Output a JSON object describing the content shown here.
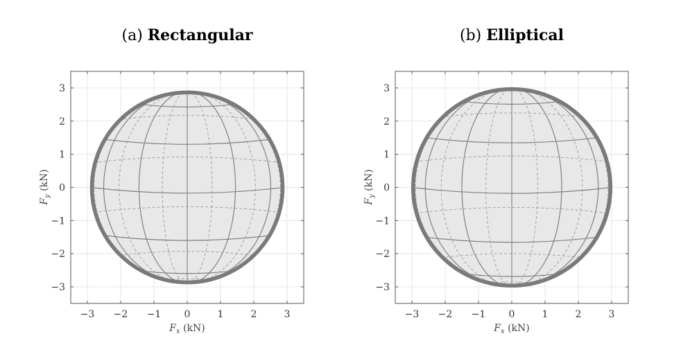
{
  "panels": [
    {
      "prefix": "(a)",
      "name": "Rectangular",
      "xlabel_var": "F",
      "xlabel_sub": "x",
      "xlabel_unit": " (kN)",
      "ylabel_var": "F",
      "ylabel_sub": "y",
      "ylabel_unit": " (kN)"
    },
    {
      "prefix": "(b)",
      "name": "Elliptical",
      "xlabel_var": "F",
      "xlabel_sub": "x",
      "xlabel_unit": " (kN)",
      "ylabel_var": "F",
      "ylabel_sub": "y",
      "ylabel_unit": " (kN)"
    }
  ],
  "chart_data": [
    {
      "type": "line",
      "title": "(a) Rectangular",
      "xlabel": "F_x (kN)",
      "ylabel": "F_y (kN)",
      "xlim": [
        -3.5,
        3.5
      ],
      "ylim": [
        -3.5,
        3.5
      ],
      "xticks": [
        -3,
        -2,
        -1,
        0,
        1,
        2,
        3
      ],
      "yticks": [
        -3,
        -2,
        -1,
        0,
        1,
        2,
        3
      ],
      "xtick_labels": [
        "−3",
        "−2",
        "−1",
        "0",
        "1",
        "2",
        "3"
      ],
      "ytick_labels": [
        "−3",
        "−2",
        "−1",
        "0",
        "1",
        "2",
        "3"
      ],
      "grid": true,
      "envelope_radius": 2.9,
      "series": [
        {
          "values": [
            [
              0,
              2.9
            ],
            [
              0.56,
              2.84
            ],
            [
              1.12,
              2.67
            ],
            [
              1.67,
              2.37
            ],
            [
              2.17,
              1.92
            ],
            [
              2.55,
              1.37
            ],
            [
              2.8,
              0.72
            ],
            [
              2.9,
              0
            ],
            [
              2.8,
              -0.72
            ],
            [
              2.55,
              -1.37
            ],
            [
              2.17,
              -1.92
            ],
            [
              1.67,
              -2.37
            ],
            [
              1.12,
              -2.67
            ],
            [
              0.56,
              -2.84
            ],
            [
              0,
              -2.9
            ],
            [
              -0.56,
              -2.84
            ],
            [
              -1.12,
              -2.67
            ],
            [
              -1.67,
              -2.37
            ],
            [
              -2.17,
              -1.92
            ],
            [
              -2.55,
              -1.37
            ],
            [
              -2.8,
              -0.72
            ],
            [
              -2.9,
              0
            ],
            [
              -2.8,
              0.72
            ],
            [
              -2.55,
              1.37
            ],
            [
              -2.17,
              1.92
            ],
            [
              -1.67,
              2.37
            ],
            [
              -1.12,
              2.67
            ],
            [
              -0.56,
              2.84
            ],
            [
              0,
              2.9
            ]
          ]
        }
      ]
    },
    {
      "type": "line",
      "title": "(b) Elliptical",
      "xlabel": "F_x (kN)",
      "ylabel": "F_y (kN)",
      "xlim": [
        -3.5,
        3.5
      ],
      "ylim": [
        -3.5,
        3.5
      ],
      "xticks": [
        -3,
        -2,
        -1,
        0,
        1,
        2,
        3
      ],
      "yticks": [
        -3,
        -2,
        -1,
        0,
        1,
        2,
        3
      ],
      "xtick_labels": [
        "−3",
        "−2",
        "−1",
        "0",
        "1",
        "2",
        "3"
      ],
      "ytick_labels": [
        "−3",
        "−2",
        "−1",
        "0",
        "1",
        "2",
        "3"
      ],
      "grid": true,
      "envelope_radius": 3.0,
      "series": [
        {
          "values": [
            [
              0,
              3.0
            ],
            [
              0.58,
              2.94
            ],
            [
              1.15,
              2.77
            ],
            [
              1.72,
              2.46
            ],
            [
              2.24,
              1.99
            ],
            [
              2.64,
              1.42
            ],
            [
              2.9,
              0.75
            ],
            [
              3.0,
              0
            ],
            [
              2.9,
              -0.75
            ],
            [
              2.64,
              -1.42
            ],
            [
              2.24,
              -1.99
            ],
            [
              1.72,
              -2.46
            ],
            [
              1.15,
              -2.77
            ],
            [
              0.58,
              -2.94
            ],
            [
              0,
              -3.0
            ],
            [
              -0.58,
              -2.94
            ],
            [
              -1.15,
              -2.77
            ],
            [
              -1.72,
              -2.46
            ],
            [
              -2.24,
              -1.99
            ],
            [
              -2.64,
              -1.42
            ],
            [
              -2.9,
              -0.75
            ],
            [
              -3.0,
              0
            ],
            [
              -2.9,
              0.75
            ],
            [
              -2.64,
              1.42
            ],
            [
              -2.24,
              1.99
            ],
            [
              -1.72,
              2.46
            ],
            [
              -1.15,
              2.77
            ],
            [
              -0.58,
              2.94
            ],
            [
              0,
              3.0
            ]
          ]
        }
      ]
    }
  ],
  "colors": {
    "grid": "#e6e6e6",
    "axes": "#555555",
    "fill": "#e8e8e8",
    "curve": "#808080",
    "curve_dashed": "#9a9a9a",
    "envelope": "#7a7a7a"
  }
}
